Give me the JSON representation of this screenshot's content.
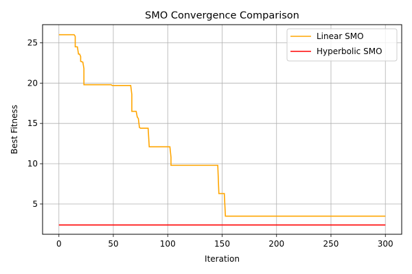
{
  "chart_data": {
    "type": "line",
    "title": "SMO Convergence Comparison",
    "xlabel": "Iteration",
    "ylabel": "Best Fitness",
    "xlim": [
      -15,
      315
    ],
    "ylim": [
      1.25,
      27.25
    ],
    "xticks": [
      0,
      50,
      100,
      150,
      200,
      250,
      300
    ],
    "yticks": [
      5,
      10,
      15,
      20,
      25
    ],
    "grid": true,
    "legend": "top-right",
    "series": [
      {
        "name": "Linear SMO",
        "color": "#ffa500",
        "step": true,
        "points": [
          [
            0,
            26.0
          ],
          [
            14,
            26.0
          ],
          [
            15,
            25.8
          ],
          [
            15,
            24.5
          ],
          [
            17,
            24.5
          ],
          [
            18,
            23.6
          ],
          [
            19,
            23.6
          ],
          [
            20,
            23.3
          ],
          [
            20,
            22.7
          ],
          [
            22,
            22.6
          ],
          [
            23,
            21.8
          ],
          [
            23,
            19.8
          ],
          [
            48,
            19.8
          ],
          [
            49,
            19.7
          ],
          [
            66,
            19.7
          ],
          [
            67,
            18.6
          ],
          [
            67,
            16.5
          ],
          [
            71,
            16.5
          ],
          [
            72,
            15.8
          ],
          [
            73,
            15.6
          ],
          [
            74,
            14.5
          ],
          [
            75,
            14.4
          ],
          [
            82,
            14.4
          ],
          [
            83,
            12.1
          ],
          [
            102,
            12.1
          ],
          [
            103,
            10.8
          ],
          [
            103,
            9.8
          ],
          [
            146,
            9.8
          ],
          [
            147,
            6.3
          ],
          [
            152,
            6.3
          ],
          [
            153,
            3.5
          ],
          [
            300,
            3.5
          ]
        ]
      },
      {
        "name": "Hyperbolic SMO",
        "color": "#ff0000",
        "step": false,
        "points": [
          [
            0,
            2.4
          ],
          [
            300,
            2.4
          ]
        ]
      }
    ]
  }
}
